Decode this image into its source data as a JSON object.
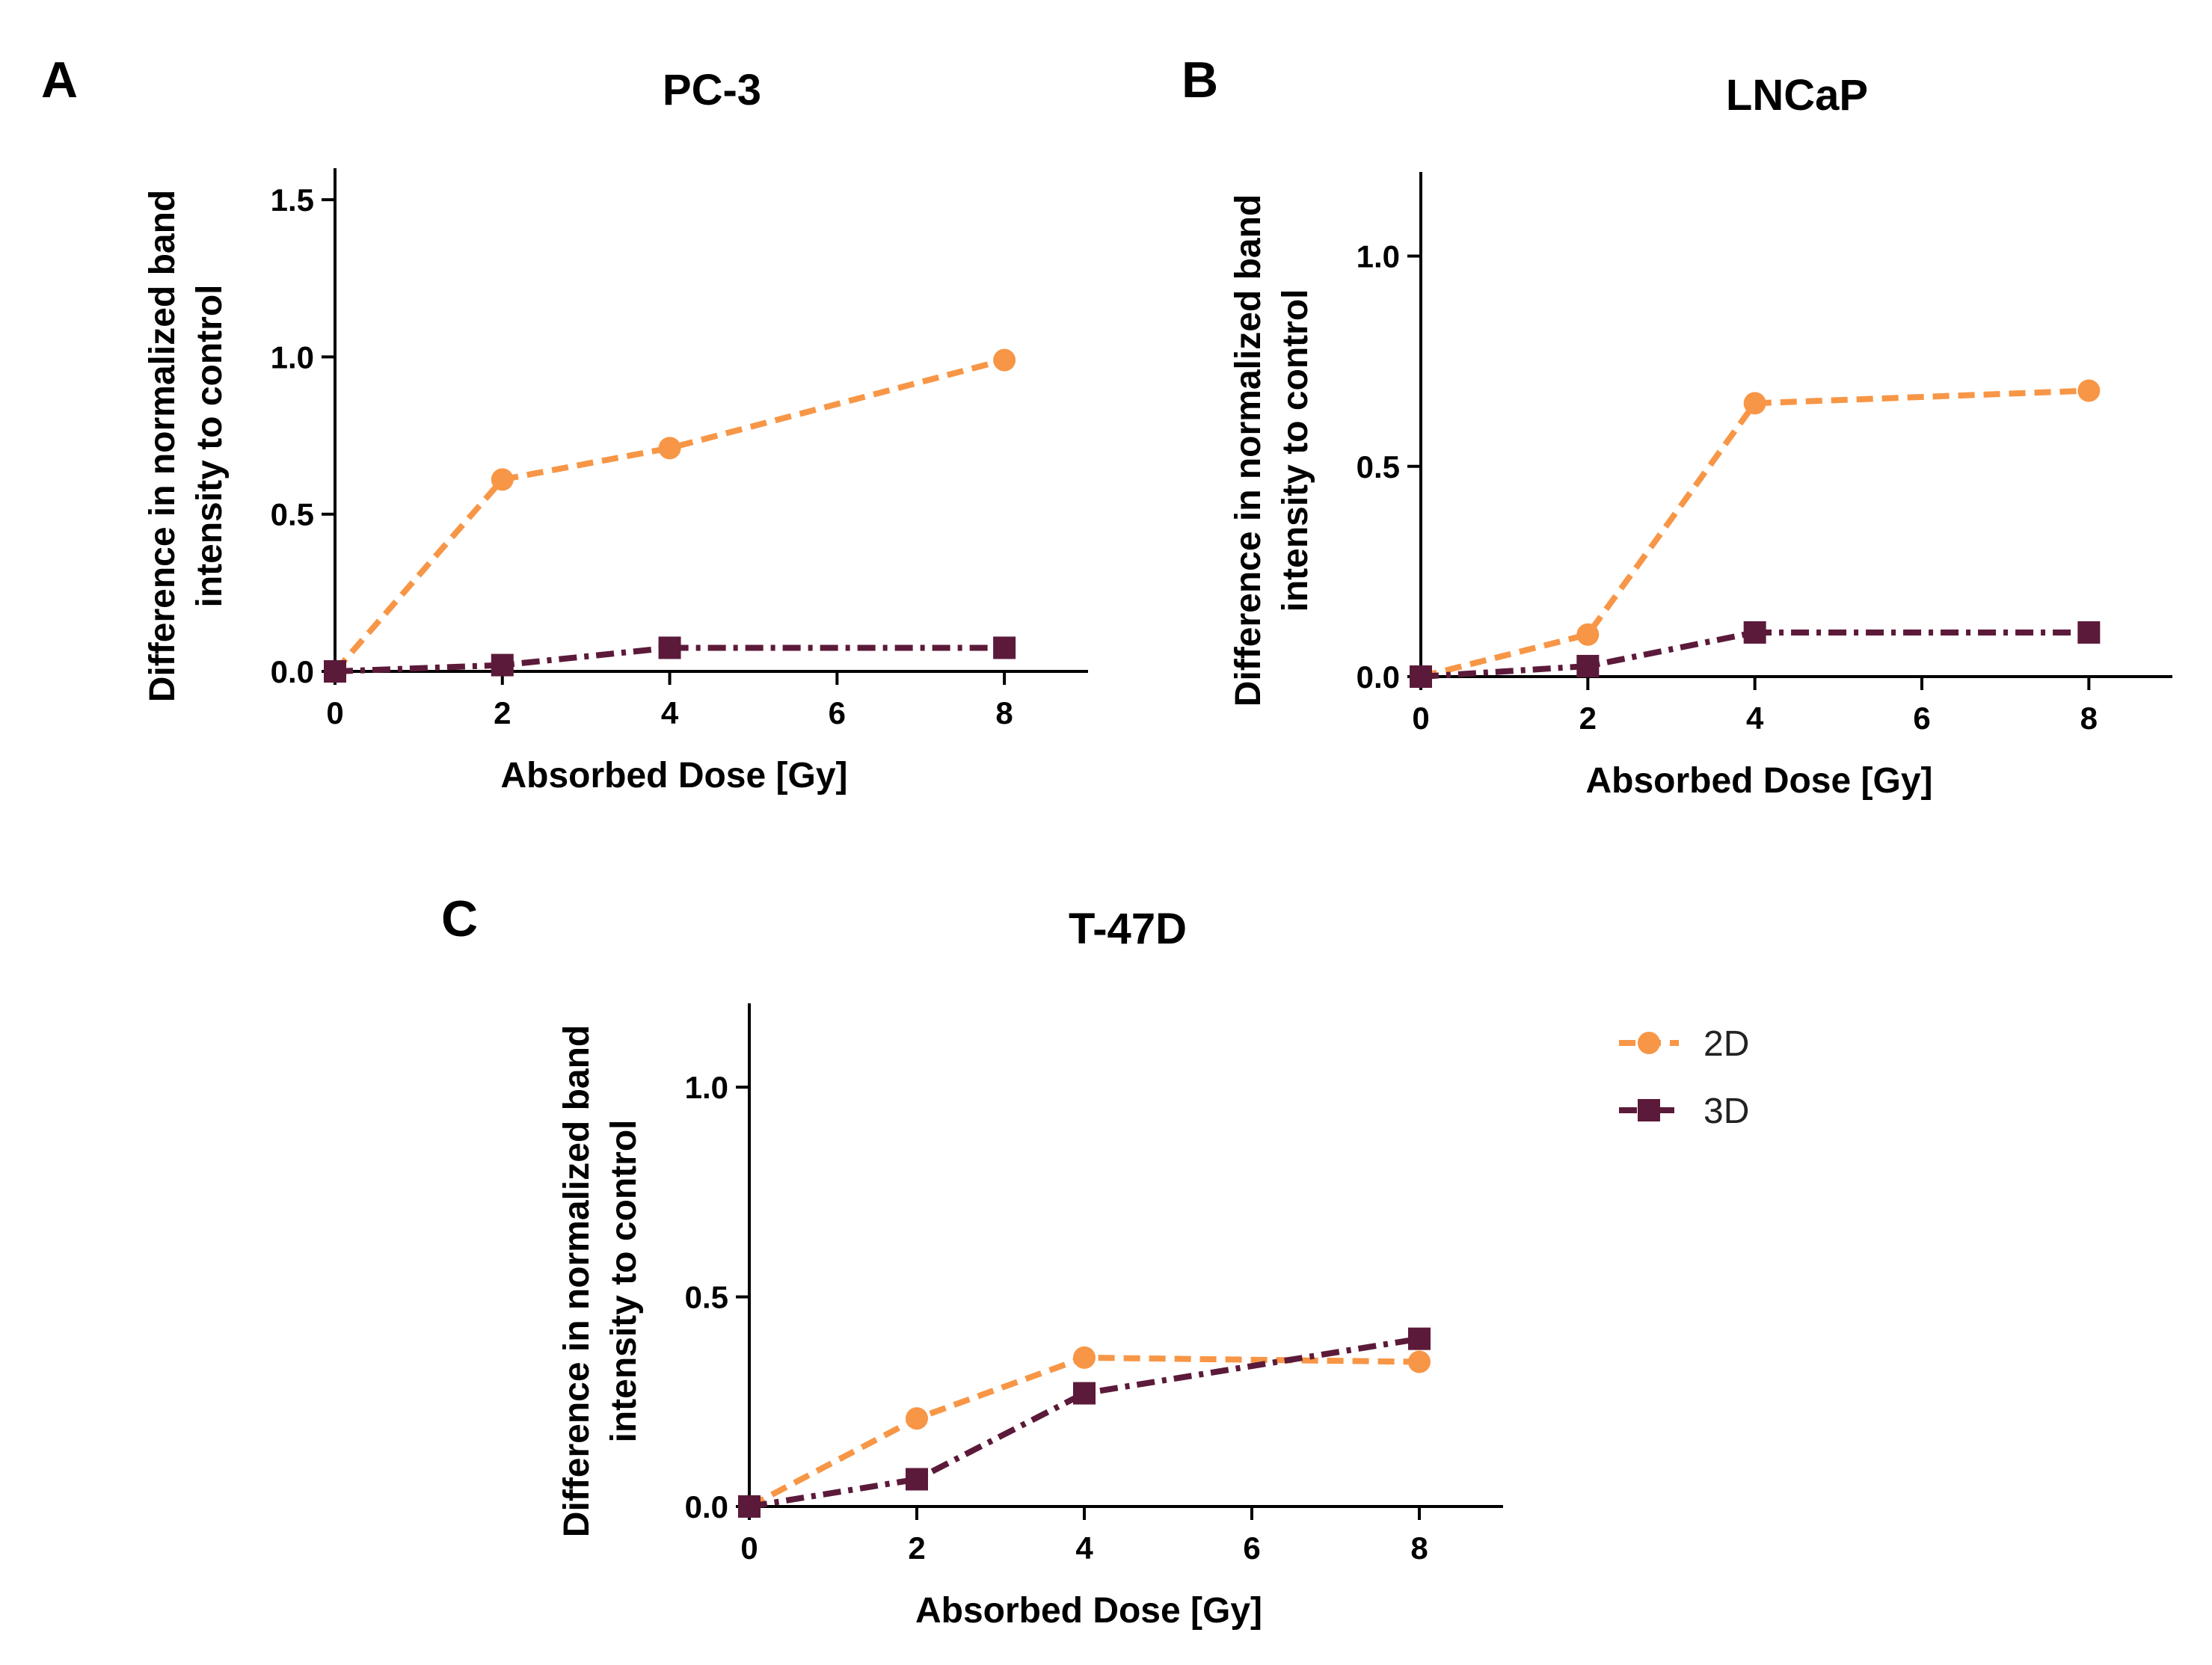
{
  "chart_data": [
    {
      "type": "line",
      "panel": "A",
      "title": "PC-3",
      "xlabel": "Absorbed Dose [Gy]",
      "ylabel_line1": "Difference in normalized band",
      "ylabel_line2": "intensity to control",
      "x": [
        0,
        2,
        4,
        8
      ],
      "xticks": [
        "0",
        "2",
        "4",
        "6",
        "8"
      ],
      "yticks": [
        "0.0",
        "0.5",
        "1.0",
        "1.5"
      ],
      "xlim": [
        0,
        9
      ],
      "ylim": [
        0,
        1.6
      ],
      "series": [
        {
          "name": "2D",
          "values": [
            0.0,
            0.61,
            0.71,
            0.99
          ]
        },
        {
          "name": "3D",
          "values": [
            0.0,
            0.02,
            0.075,
            0.075
          ]
        }
      ]
    },
    {
      "type": "line",
      "panel": "B",
      "title": "LNCaP",
      "xlabel": "Absorbed Dose [Gy]",
      "ylabel_line1": "Difference in normalized band",
      "ylabel_line2": "intensity to control",
      "x": [
        0,
        2,
        4,
        8
      ],
      "xticks": [
        "0",
        "2",
        "4",
        "6",
        "8"
      ],
      "yticks": [
        "0.0",
        "0.5",
        "1.0"
      ],
      "xlim": [
        0,
        9
      ],
      "ylim": [
        0,
        1.2
      ],
      "series": [
        {
          "name": "2D",
          "values": [
            0.0,
            0.1,
            0.65,
            0.68
          ]
        },
        {
          "name": "3D",
          "values": [
            0.0,
            0.025,
            0.105,
            0.105
          ]
        }
      ]
    },
    {
      "type": "line",
      "panel": "C",
      "title": "T-47D",
      "xlabel": "Absorbed Dose [Gy]",
      "ylabel_line1": "Difference in normalized band",
      "ylabel_line2": "intensity to control",
      "x": [
        0,
        2,
        4,
        8
      ],
      "xticks": [
        "0",
        "2",
        "4",
        "6",
        "8"
      ],
      "yticks": [
        "0.0",
        "0.5",
        "1.0"
      ],
      "xlim": [
        0,
        9
      ],
      "ylim": [
        0,
        1.2
      ],
      "series": [
        {
          "name": "2D",
          "values": [
            0.0,
            0.21,
            0.355,
            0.345
          ]
        },
        {
          "name": "3D",
          "values": [
            0.0,
            0.065,
            0.27,
            0.4
          ]
        }
      ]
    }
  ],
  "legend": {
    "entries": [
      {
        "label": "2D",
        "marker": "circle",
        "style": "dashed"
      },
      {
        "label": "3D",
        "marker": "square",
        "style": "dash-dot"
      }
    ]
  },
  "colors": {
    "2D": "#F79646",
    "3D": "#5C1A3A"
  }
}
